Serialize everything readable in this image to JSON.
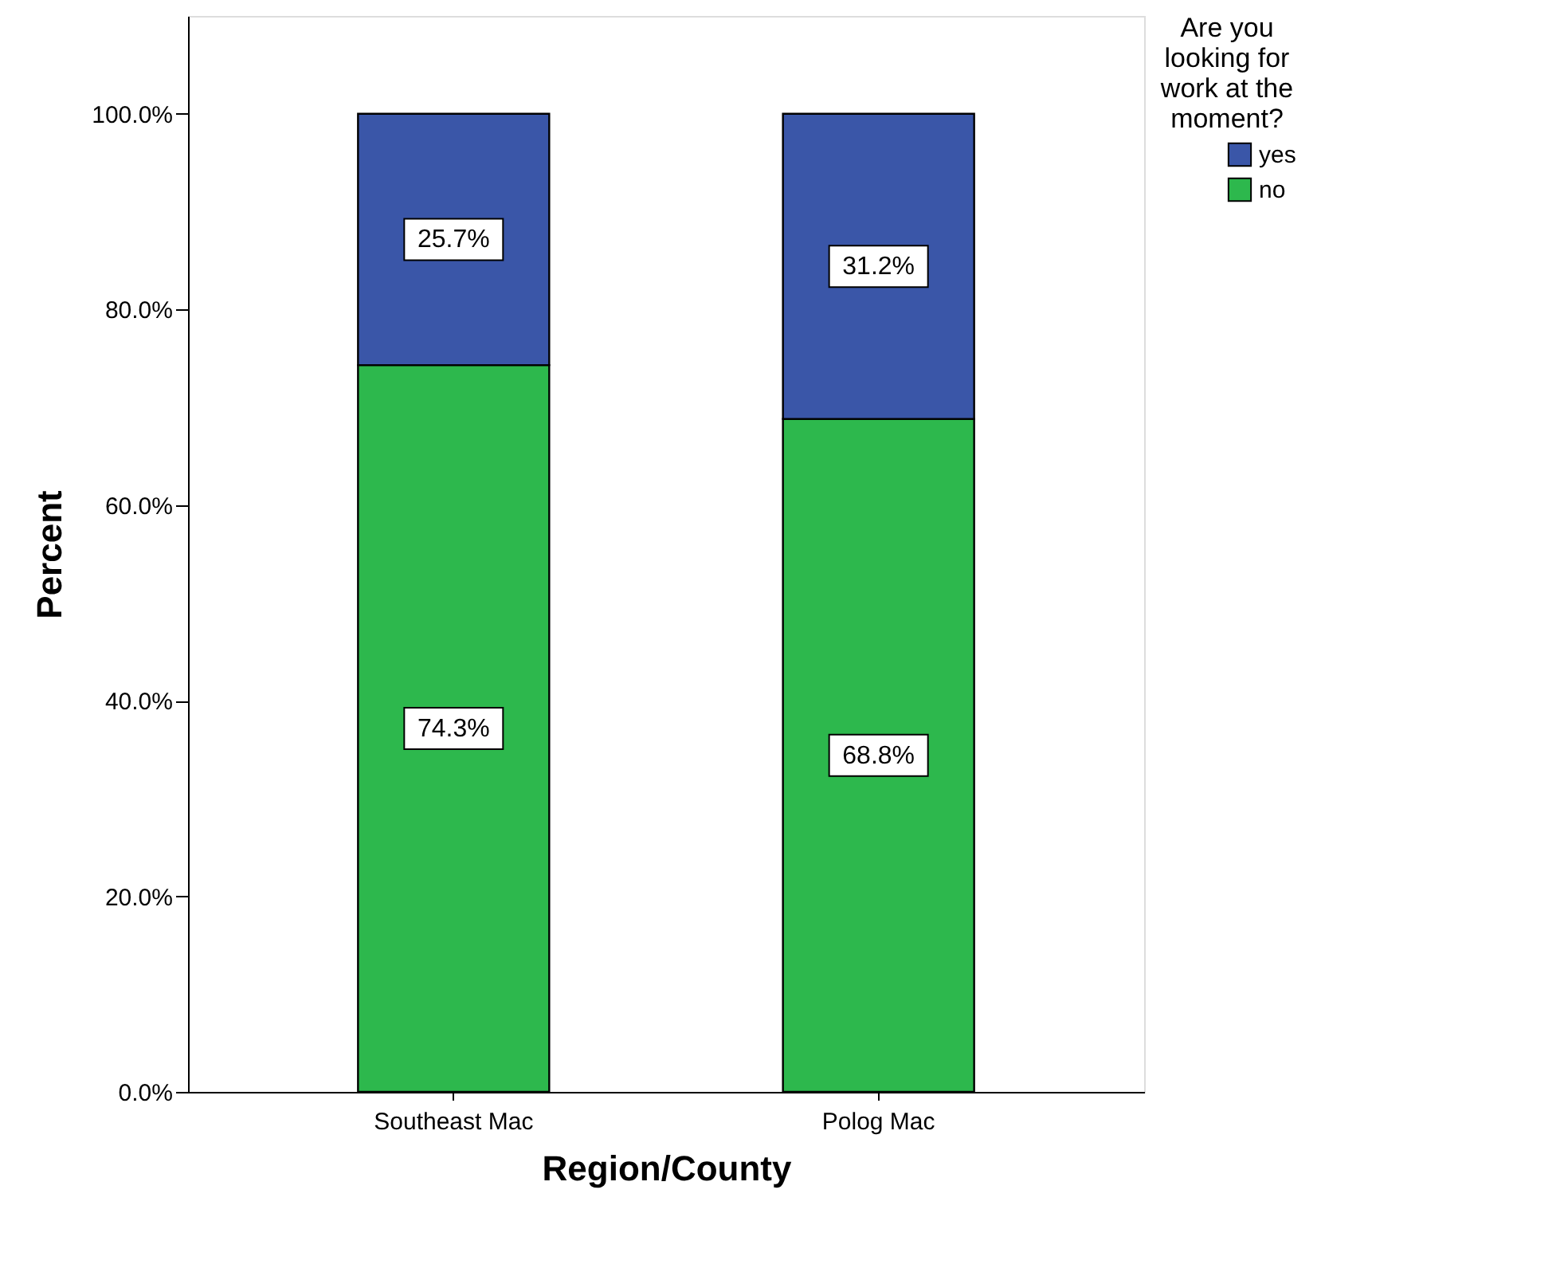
{
  "chart_data": {
    "type": "bar",
    "stacked": true,
    "xlabel": "Region/County",
    "ylabel": "Percent",
    "legend_title": "Are you looking for work at the moment?",
    "legend": "top right",
    "categories": [
      "Southeast Mac",
      "Polog Mac"
    ],
    "series": [
      {
        "name": "no",
        "color": "#2db84d",
        "values": [
          74.3,
          68.8
        ],
        "value_labels": [
          "74.3%",
          "68.8%"
        ]
      },
      {
        "name": "yes",
        "color": "#3a56a8",
        "values": [
          25.7,
          31.2
        ],
        "value_labels": [
          "25.7%",
          "31.2%"
        ]
      }
    ],
    "ylim": [
      0,
      110
    ],
    "yticks": [
      {
        "value": 0,
        "label": "0.0%"
      },
      {
        "value": 20,
        "label": "20.0%"
      },
      {
        "value": 40,
        "label": "40.0%"
      },
      {
        "value": 60,
        "label": "60.0%"
      },
      {
        "value": 80,
        "label": "80.0%"
      },
      {
        "value": 100,
        "label": "100.0%"
      }
    ],
    "grid": false
  }
}
